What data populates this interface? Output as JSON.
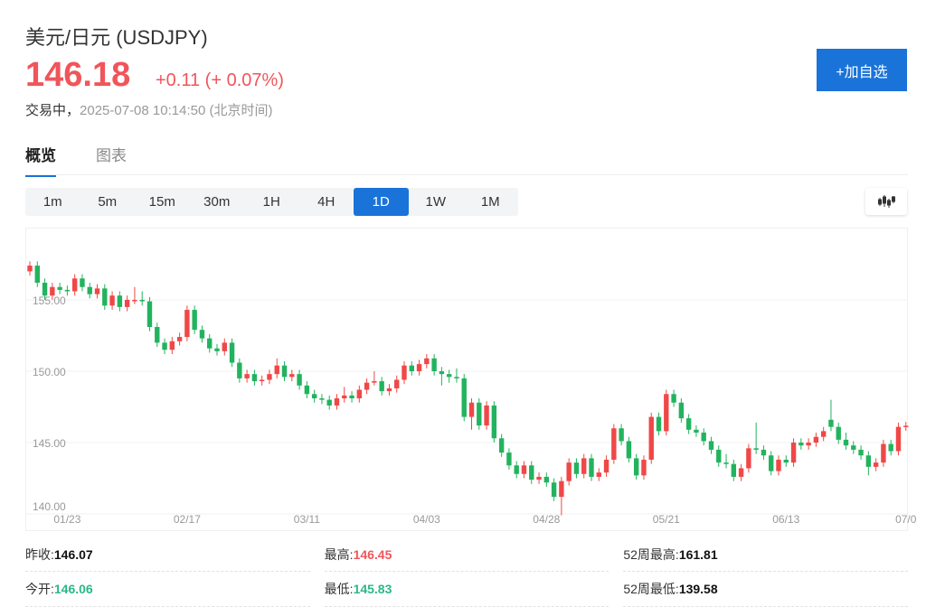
{
  "header": {
    "title": "美元/日元 (USDJPY)",
    "price": "146.18",
    "change": "+0.11 (+ 0.07%)",
    "status": "交易中，",
    "timestamp": "2025-07-08 10:14:50",
    "timezone": "(北京时间)",
    "add_button": "+加自选",
    "price_color": "#f0555a"
  },
  "tabs": [
    {
      "label": "概览",
      "active": true
    },
    {
      "label": "图表",
      "active": false
    }
  ],
  "periods": [
    {
      "label": "1m"
    },
    {
      "label": "5m"
    },
    {
      "label": "15m"
    },
    {
      "label": "30m"
    },
    {
      "label": "1H"
    },
    {
      "label": "4H"
    },
    {
      "label": "1D",
      "active": true
    },
    {
      "label": "1W"
    },
    {
      "label": "1M"
    }
  ],
  "chart_type_icon": "candlestick-icon",
  "stats": [
    [
      {
        "label": "昨收:",
        "value": "146.07",
        "tone": ""
      },
      {
        "label": "最高:",
        "value": "146.45",
        "tone": "up"
      },
      {
        "label": "52周最高:",
        "value": "161.81",
        "tone": ""
      }
    ],
    [
      {
        "label": "今开:",
        "value": "146.06",
        "tone": "down"
      },
      {
        "label": "最低:",
        "value": "145.83",
        "tone": "down"
      },
      {
        "label": "52周最低:",
        "value": "139.58",
        "tone": ""
      }
    ]
  ],
  "chart_data": {
    "type": "candlestick",
    "up_color": "#f04747",
    "down_color": "#22b35e",
    "ylim": [
      140,
      158.5
    ],
    "yticks": [
      "155.00",
      "150.00",
      "145.00",
      "140.00"
    ],
    "yvalues": [
      155,
      150,
      145,
      140
    ],
    "xticks": [
      {
        "index": 5,
        "label": "01/23"
      },
      {
        "index": 21,
        "label": "02/17"
      },
      {
        "index": 37,
        "label": "03/11"
      },
      {
        "index": 53,
        "label": "04/03"
      },
      {
        "index": 69,
        "label": "04/28"
      },
      {
        "index": 85,
        "label": "05/21"
      },
      {
        "index": 101,
        "label": "06/13"
      },
      {
        "index": 117,
        "label": "07/0"
      }
    ],
    "grid": true,
    "ohlc": [
      [
        157.0,
        157.7,
        156.7,
        157.4
      ],
      [
        157.4,
        157.7,
        155.9,
        156.2
      ],
      [
        156.2,
        156.5,
        155.0,
        155.3
      ],
      [
        155.3,
        156.2,
        155.0,
        155.9
      ],
      [
        155.9,
        156.2,
        155.4,
        155.7
      ],
      [
        155.7,
        156.0,
        155.3,
        155.6
      ],
      [
        155.6,
        156.8,
        155.3,
        156.5
      ],
      [
        156.5,
        156.8,
        155.6,
        155.9
      ],
      [
        155.9,
        156.2,
        155.1,
        155.4
      ],
      [
        155.4,
        156.1,
        155.1,
        155.8
      ],
      [
        155.8,
        156.1,
        154.3,
        154.6
      ],
      [
        154.6,
        155.6,
        154.3,
        155.3
      ],
      [
        155.3,
        155.6,
        154.2,
        154.5
      ],
      [
        154.5,
        155.3,
        154.2,
        155.0
      ],
      [
        155.0,
        155.9,
        154.7,
        155.0
      ],
      [
        155.0,
        155.6,
        154.6,
        154.9
      ],
      [
        154.9,
        155.2,
        152.8,
        153.1
      ],
      [
        153.1,
        153.4,
        151.7,
        152.0
      ],
      [
        152.0,
        152.3,
        151.2,
        151.5
      ],
      [
        151.5,
        152.4,
        151.2,
        152.1
      ],
      [
        152.1,
        152.7,
        151.8,
        152.4
      ],
      [
        152.4,
        154.6,
        152.1,
        154.3
      ],
      [
        154.3,
        154.6,
        152.6,
        152.9
      ],
      [
        152.9,
        153.2,
        152.0,
        152.3
      ],
      [
        152.3,
        152.6,
        151.3,
        151.6
      ],
      [
        151.6,
        151.9,
        151.1,
        151.4
      ],
      [
        151.4,
        152.3,
        151.1,
        152.0
      ],
      [
        152.0,
        152.3,
        150.3,
        150.6
      ],
      [
        150.6,
        150.9,
        149.2,
        149.5
      ],
      [
        149.5,
        150.1,
        149.2,
        149.8
      ],
      [
        149.8,
        150.1,
        149.0,
        149.3
      ],
      [
        149.3,
        149.7,
        149.0,
        149.4
      ],
      [
        149.4,
        150.1,
        149.1,
        149.8
      ],
      [
        149.8,
        150.9,
        149.5,
        150.4
      ],
      [
        150.4,
        150.7,
        149.3,
        149.6
      ],
      [
        149.6,
        150.1,
        149.3,
        149.8
      ],
      [
        149.8,
        150.1,
        148.7,
        149.0
      ],
      [
        149.0,
        149.3,
        148.1,
        148.4
      ],
      [
        148.4,
        148.7,
        147.8,
        148.1
      ],
      [
        148.1,
        148.4,
        147.7,
        148.0
      ],
      [
        148.0,
        148.3,
        147.3,
        147.6
      ],
      [
        147.6,
        148.4,
        147.3,
        148.1
      ],
      [
        148.1,
        148.9,
        147.8,
        148.3
      ],
      [
        148.3,
        148.6,
        147.8,
        148.1
      ],
      [
        148.1,
        149.0,
        147.8,
        148.7
      ],
      [
        148.7,
        149.5,
        148.4,
        149.2
      ],
      [
        149.2,
        150.0,
        149.0,
        149.3
      ],
      [
        149.3,
        149.6,
        148.3,
        148.6
      ],
      [
        148.6,
        149.1,
        148.3,
        148.8
      ],
      [
        148.8,
        149.7,
        148.5,
        149.4
      ],
      [
        149.4,
        150.7,
        149.1,
        150.4
      ],
      [
        150.4,
        150.7,
        149.7,
        150.0
      ],
      [
        150.0,
        150.8,
        149.7,
        150.5
      ],
      [
        150.5,
        151.2,
        150.2,
        150.9
      ],
      [
        150.9,
        151.2,
        149.7,
        150.0
      ],
      [
        150.0,
        150.3,
        149.0,
        149.8
      ],
      [
        149.8,
        150.1,
        149.2,
        149.6
      ],
      [
        149.6,
        150.2,
        149.2,
        149.5
      ],
      [
        149.5,
        149.8,
        146.5,
        146.8
      ],
      [
        146.8,
        148.1,
        145.9,
        147.8
      ],
      [
        147.8,
        148.1,
        145.9,
        146.2
      ],
      [
        146.2,
        147.9,
        145.9,
        147.6
      ],
      [
        147.6,
        147.9,
        145.0,
        145.3
      ],
      [
        145.3,
        145.6,
        144.0,
        144.3
      ],
      [
        144.3,
        144.6,
        143.1,
        143.4
      ],
      [
        143.4,
        143.7,
        142.5,
        142.8
      ],
      [
        142.8,
        143.7,
        142.5,
        143.4
      ],
      [
        143.4,
        143.7,
        142.1,
        142.4
      ],
      [
        142.4,
        142.9,
        142.1,
        142.6
      ],
      [
        142.6,
        142.9,
        141.9,
        142.2
      ],
      [
        142.2,
        142.5,
        140.9,
        141.2
      ],
      [
        141.2,
        142.6,
        139.9,
        142.3
      ],
      [
        142.3,
        143.9,
        142.0,
        143.6
      ],
      [
        143.6,
        143.9,
        142.5,
        142.8
      ],
      [
        142.8,
        144.2,
        142.5,
        143.9
      ],
      [
        143.9,
        144.2,
        142.3,
        142.6
      ],
      [
        142.6,
        143.2,
        142.3,
        142.9
      ],
      [
        142.9,
        144.1,
        142.6,
        143.8
      ],
      [
        143.8,
        146.3,
        143.5,
        146.0
      ],
      [
        146.0,
        146.3,
        144.8,
        145.1
      ],
      [
        145.1,
        145.4,
        143.6,
        143.9
      ],
      [
        143.9,
        144.2,
        142.4,
        142.7
      ],
      [
        142.7,
        144.1,
        142.4,
        143.8
      ],
      [
        143.8,
        147.1,
        143.5,
        146.8
      ],
      [
        146.8,
        147.1,
        145.5,
        145.8
      ],
      [
        145.8,
        148.7,
        145.5,
        148.4
      ],
      [
        148.4,
        148.7,
        147.5,
        147.8
      ],
      [
        147.8,
        148.1,
        146.4,
        146.7
      ],
      [
        146.7,
        147.0,
        145.6,
        145.9
      ],
      [
        145.9,
        146.2,
        145.4,
        145.7
      ],
      [
        145.7,
        146.0,
        144.8,
        145.1
      ],
      [
        145.1,
        145.4,
        144.2,
        144.5
      ],
      [
        144.5,
        144.8,
        143.3,
        143.6
      ],
      [
        143.6,
        144.2,
        143.2,
        143.5
      ],
      [
        143.5,
        143.8,
        142.3,
        142.6
      ],
      [
        142.6,
        143.5,
        142.3,
        143.2
      ],
      [
        143.2,
        144.9,
        142.9,
        144.6
      ],
      [
        144.6,
        146.4,
        144.2,
        144.5
      ],
      [
        144.5,
        144.8,
        143.8,
        144.1
      ],
      [
        144.1,
        144.4,
        142.7,
        143.0
      ],
      [
        143.0,
        144.1,
        142.7,
        143.8
      ],
      [
        143.8,
        144.1,
        143.3,
        143.6
      ],
      [
        143.6,
        145.3,
        143.3,
        145.0
      ],
      [
        145.0,
        145.3,
        144.5,
        144.8
      ],
      [
        144.8,
        145.3,
        144.5,
        145.0
      ],
      [
        145.0,
        145.7,
        144.7,
        145.4
      ],
      [
        145.4,
        146.1,
        145.1,
        145.8
      ],
      [
        146.6,
        148.0,
        145.8,
        146.1
      ],
      [
        146.1,
        146.4,
        144.9,
        145.2
      ],
      [
        145.2,
        145.7,
        144.5,
        144.8
      ],
      [
        144.8,
        145.1,
        144.2,
        144.5
      ],
      [
        144.5,
        144.8,
        143.8,
        144.1
      ],
      [
        144.1,
        144.4,
        142.7,
        143.3
      ],
      [
        143.3,
        143.9,
        143.0,
        143.6
      ],
      [
        143.6,
        145.2,
        143.3,
        144.9
      ],
      [
        144.9,
        145.2,
        144.1,
        144.4
      ],
      [
        144.4,
        146.4,
        144.1,
        146.1
      ],
      [
        146.1,
        146.45,
        145.83,
        146.18
      ]
    ]
  }
}
